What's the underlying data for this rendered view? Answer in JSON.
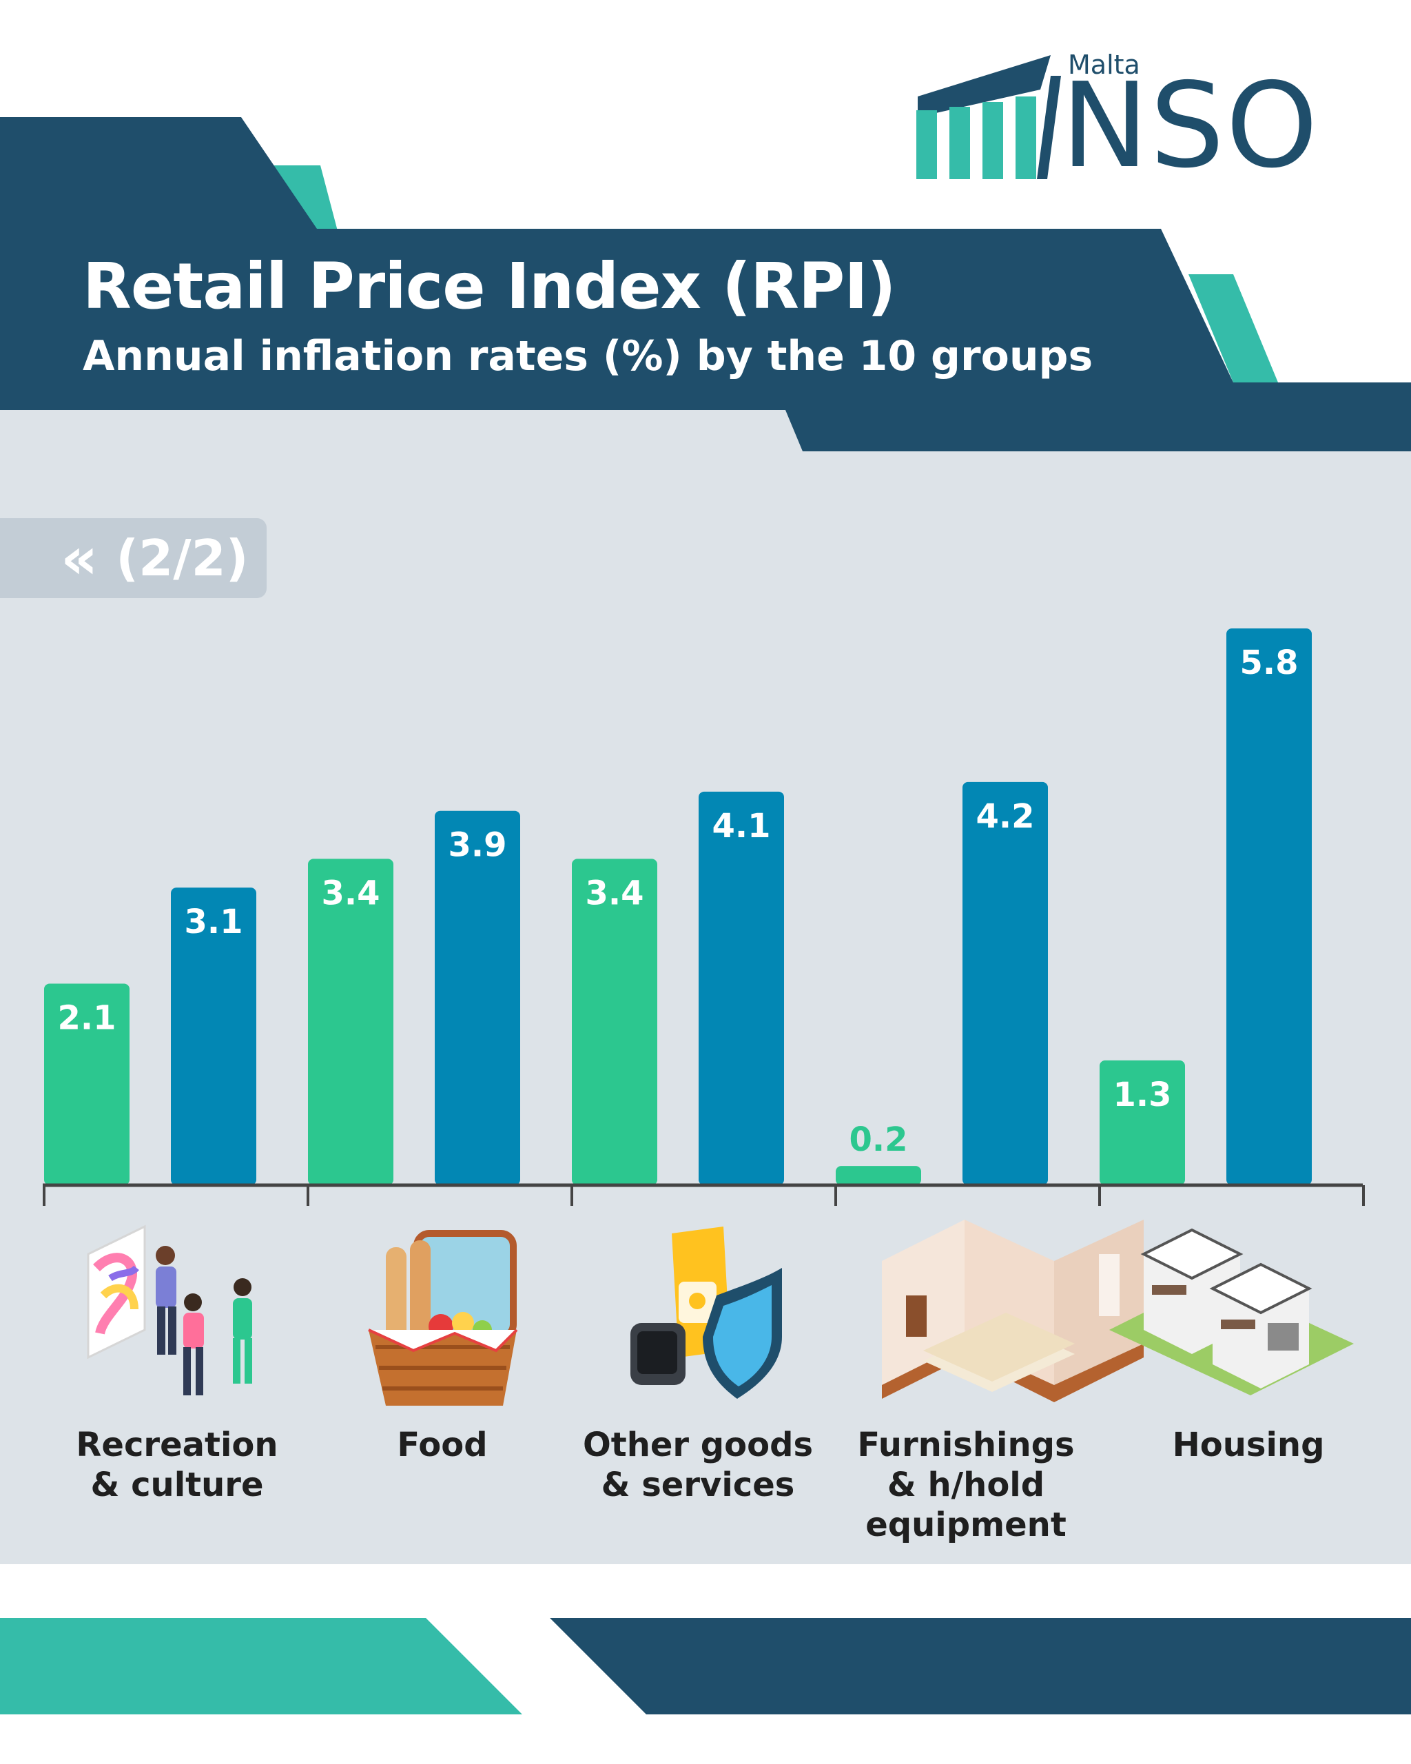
{
  "header": {
    "title": "Retail Price Index (RPI)",
    "subtitle": "Annual inflation rates (%) by the 10 groups"
  },
  "logo": {
    "country": "Malta",
    "name": "NSO"
  },
  "pager": {
    "arrow": "«",
    "label": "(2/2)"
  },
  "colors": {
    "navy": "#1f4e6b",
    "teal": "#35bca9",
    "green_bar": "#2cc78f",
    "blue_bar": "#0287b4",
    "panel": "#dde3e8"
  },
  "icons": [
    "art-gallery-icon",
    "picnic-basket-icon",
    "pet-food-watch-shield-icon",
    "bedroom-icon",
    "townhouse-icon"
  ],
  "chart_data": {
    "type": "bar",
    "categories": [
      "Recreation\n& culture",
      "Food",
      "Other goods\n& services",
      "Furnishings\n& h/hold\nequipment",
      "Housing"
    ],
    "series": [
      {
        "values": [
          2.1,
          3.4,
          3.4,
          0.2,
          1.3
        ]
      },
      {
        "values": [
          3.1,
          3.9,
          4.1,
          4.2,
          5.8
        ]
      }
    ],
    "ylim": [
      0,
      5.8
    ],
    "grid": false,
    "legend": "none"
  }
}
